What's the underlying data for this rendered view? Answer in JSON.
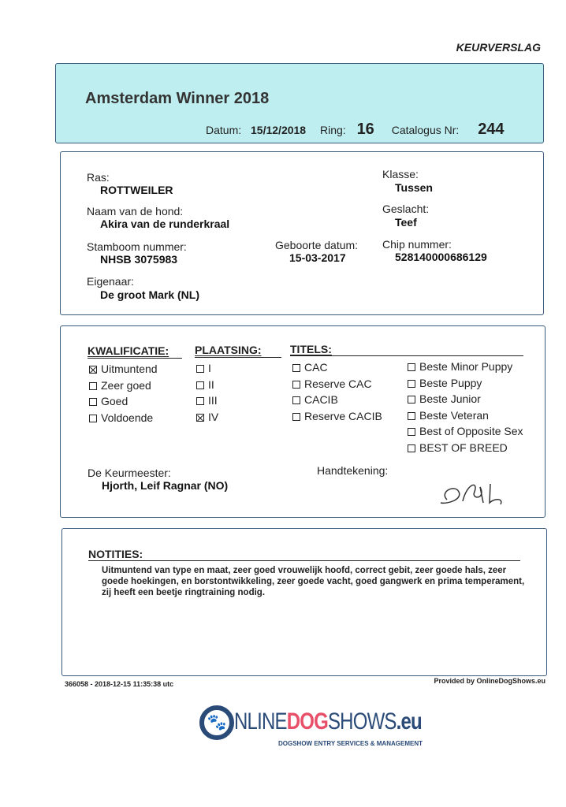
{
  "doc_type": "KEURVERSLAG",
  "header": {
    "title": "Amsterdam Winner 2018",
    "datum_label": "Datum:",
    "datum": "15/12/2018",
    "ring_label": "Ring:",
    "ring": "16",
    "catalogus_label": "Catalogus Nr:",
    "catalogus": "244",
    "bg_color": "#bfeef0"
  },
  "dog": {
    "ras_label": "Ras:",
    "ras": "ROTTWEILER",
    "naam_label": "Naam van de hond:",
    "naam": "Akira van de runderkraal",
    "stamboom_label": "Stamboom nummer:",
    "stamboom": "NHSB 3075983",
    "geboorte_label": "Geboorte datum:",
    "geboorte": "15-03-2017",
    "eigenaar_label": "Eigenaar:",
    "eigenaar": "De groot Mark (NL)",
    "klasse_label": "Klasse:",
    "klasse": "Tussen",
    "geslacht_label": "Geslacht:",
    "geslacht": "Teef",
    "chip_label": "Chip nummer:",
    "chip": "528140000686129"
  },
  "judging": {
    "kwalificatie_label": "KWALIFICATIE:",
    "kwalificatie": [
      {
        "label": "Uitmuntend",
        "checked": true
      },
      {
        "label": "Zeer goed",
        "checked": false
      },
      {
        "label": "Goed",
        "checked": false
      },
      {
        "label": "Voldoende",
        "checked": false
      }
    ],
    "plaatsing_label": "PLAATSING:",
    "plaatsing": [
      {
        "label": "I",
        "checked": false
      },
      {
        "label": "II",
        "checked": false
      },
      {
        "label": "III",
        "checked": false
      },
      {
        "label": "IV",
        "checked": true
      }
    ],
    "titels_label": "TITELS:",
    "titels": [
      {
        "label": "CAC",
        "checked": false
      },
      {
        "label": "Reserve CAC",
        "checked": false
      },
      {
        "label": "CACIB",
        "checked": false
      },
      {
        "label": "Reserve CACIB",
        "checked": false
      }
    ],
    "titels2": [
      {
        "label": "Beste Minor Puppy",
        "checked": false
      },
      {
        "label": "Beste Puppy",
        "checked": false
      },
      {
        "label": "Beste Junior",
        "checked": false
      },
      {
        "label": "Beste Veteran",
        "checked": false
      },
      {
        "label": "Best of Opposite Sex",
        "checked": false
      },
      {
        "label": "BEST OF BREED",
        "checked": false
      }
    ],
    "keurmeester_label": "De Keurmeester:",
    "keurmeester": "Hjorth, Leif Ragnar (NO)",
    "handtekening_label": "Handtekening:"
  },
  "notes": {
    "label": "NOTITIES:",
    "text": "Uitmuntend van type en maat, zeer goed vrouwelijk hoofd, correct gebit, zeer goede hals, zeer goede hoekingen, en borstontwikkeling, zeer goede vacht, goed gangwerk en prima temperament, zij heeft een beetje ringtraining nodig."
  },
  "footer": {
    "id_stamp": "366058 - 2018-12-15 11:35:38 utc",
    "provided_by": "Provided by OnlineDogShows.eu"
  },
  "logo": {
    "text_a": "NLINE",
    "text_b": "DOG",
    "text_c": "SHOWS",
    "text_d": ".eu",
    "tagline": "DOGSHOW ENTRY SERVICES & MANAGEMENT",
    "blue": "#2a4a78",
    "red": "#e8506a"
  }
}
